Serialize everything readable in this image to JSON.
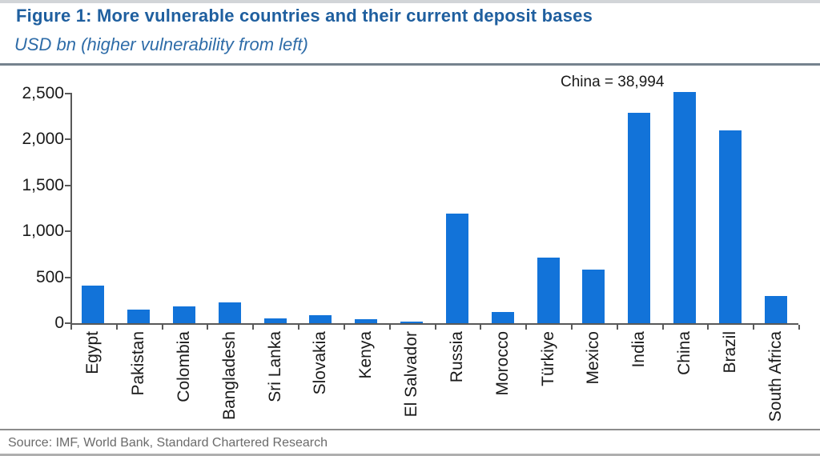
{
  "figure": {
    "title": "Figure 1: More vulnerable countries and their current deposit bases",
    "subtitle": "USD bn (higher vulnerability from left)",
    "annotation": "China = 38,994",
    "source": "Source: IMF, World Bank, Standard Chartered Research"
  },
  "colors": {
    "bar_blue": "#1273d9",
    "title_blue": "#1f5f9f",
    "subtitle_blue": "#2e6ca8",
    "axis_gray": "#595959",
    "header_divider": "#75828e",
    "footer_divider": "#8c8c8c",
    "source_gray": "#6b6b6b",
    "tick_label": "#1a1a1a"
  },
  "chart_data": {
    "type": "bar",
    "title": "Figure 1: More vulnerable countries and their current deposit bases",
    "subtitle": "USD bn (higher vulnerability from left)",
    "ylabel": "USD bn",
    "categories": [
      "Egypt",
      "Pakistan",
      "Colombia",
      "Bangladesh",
      "Sri Lanka",
      "Slovakia",
      "Kenya",
      "El Salvador",
      "Russia",
      "Morocco",
      "Türkiye",
      "Mexico",
      "India",
      "China",
      "Brazil",
      "South Africa"
    ],
    "values": [
      410,
      145,
      180,
      230,
      55,
      85,
      40,
      15,
      1190,
      125,
      715,
      585,
      2290,
      2510,
      2095,
      295
    ],
    "china_truncated": true,
    "china_actual_value": 38994,
    "annotation": "China = 38,994",
    "ylim": [
      0,
      2500
    ],
    "ytick_values": [
      0,
      500,
      1000,
      1500,
      2000,
      2500
    ],
    "ytick_labels": [
      "0",
      "500",
      "1,000",
      "1,500",
      "2,000",
      "2,500"
    ],
    "grid": false,
    "legend": "none",
    "bar_color": "#1273d9",
    "source": "Source: IMF, World Bank, Standard Chartered Research"
  }
}
